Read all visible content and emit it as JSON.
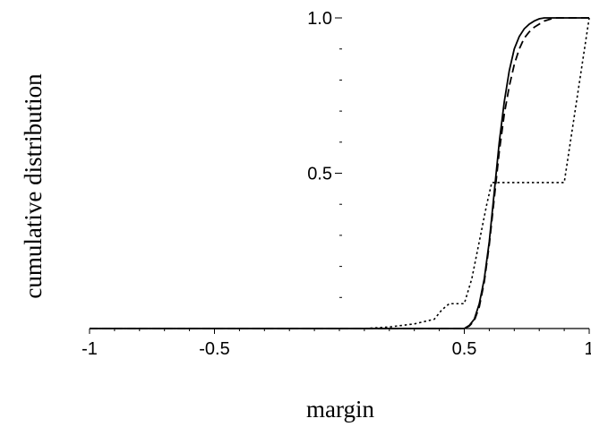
{
  "chart_data": {
    "type": "line",
    "title": "",
    "xlabel": "margin",
    "ylabel": "cumulative distribution",
    "xlim": [
      -1,
      1
    ],
    "ylim": [
      0,
      1
    ],
    "x_ticks": [
      {
        "value": -1,
        "label": "-1"
      },
      {
        "value": -0.5,
        "label": "-0.5"
      },
      {
        "value": 0.5,
        "label": "0.5"
      },
      {
        "value": 1,
        "label": "1"
      }
    ],
    "y_ticks": [
      {
        "value": 1.0,
        "label": "1.0"
      },
      {
        "value": 0.5,
        "label": "0.5"
      }
    ],
    "y_minor_step": 0.1,
    "x_minor_step": 0.1,
    "grid": false,
    "legend": "none",
    "series": [
      {
        "style": "solid",
        "color": "#000000",
        "x": [
          -1,
          0.5,
          0.52,
          0.54,
          0.56,
          0.58,
          0.6,
          0.62,
          0.64,
          0.66,
          0.68,
          0.7,
          0.72,
          0.74,
          0.76,
          0.78,
          0.8,
          0.82,
          0.84,
          0.86,
          0.88,
          0.9,
          0.95,
          1.0
        ],
        "y": [
          0,
          0,
          0.01,
          0.03,
          0.08,
          0.16,
          0.28,
          0.44,
          0.6,
          0.73,
          0.83,
          0.9,
          0.94,
          0.965,
          0.98,
          0.99,
          0.997,
          1.0,
          1.0,
          1.0,
          1.0,
          1.0,
          1.0,
          1.0
        ]
      },
      {
        "style": "dashed",
        "color": "#000000",
        "x": [
          -1,
          0.5,
          0.52,
          0.54,
          0.56,
          0.58,
          0.6,
          0.62,
          0.64,
          0.66,
          0.68,
          0.7,
          0.72,
          0.74,
          0.76,
          0.78,
          0.8,
          0.82,
          0.84,
          0.86,
          0.88,
          0.9,
          0.95,
          1.0
        ],
        "y": [
          0,
          0,
          0.008,
          0.025,
          0.07,
          0.15,
          0.27,
          0.42,
          0.57,
          0.69,
          0.78,
          0.85,
          0.9,
          0.935,
          0.955,
          0.97,
          0.98,
          0.99,
          0.995,
          1.0,
          1.0,
          1.0,
          1.0,
          1.0
        ]
      },
      {
        "style": "dotted",
        "color": "#000000",
        "x": [
          -1,
          0.1,
          0.2,
          0.3,
          0.38,
          0.41,
          0.44,
          0.47,
          0.5,
          0.53,
          0.55,
          0.57,
          0.59,
          0.61,
          0.64,
          0.7,
          0.8,
          0.9,
          1.0
        ],
        "y": [
          0,
          0,
          0.005,
          0.015,
          0.03,
          0.06,
          0.08,
          0.08,
          0.08,
          0.16,
          0.24,
          0.32,
          0.4,
          0.47,
          0.47,
          0.47,
          0.47,
          0.47,
          1.0
        ]
      }
    ]
  }
}
